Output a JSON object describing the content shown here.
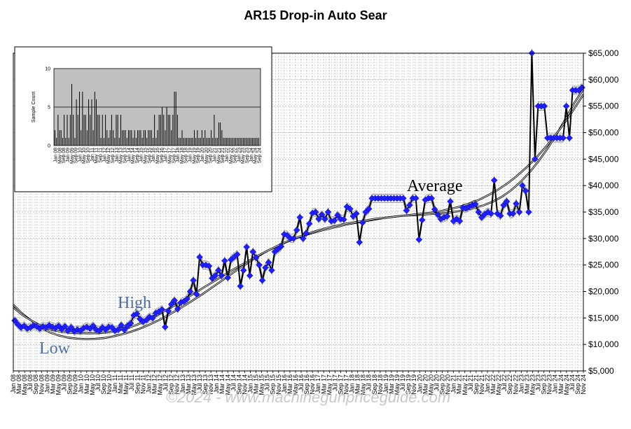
{
  "title": "AR15 Drop-in Auto Sear",
  "watermark": "©2024 - www.machinegunpriceguide.com",
  "colors": {
    "price_line": "#000000",
    "marker": "#1f1fff",
    "trend": "#000000",
    "band": "#c8c8d0",
    "grid": "#b8b8b8",
    "inset_bg": "#c0c0c0"
  },
  "chart_data": {
    "type": "line",
    "title": "AR15 Drop-in Auto Sear",
    "ylim": [
      5000,
      65000
    ],
    "yticks": [
      "$5,000",
      "$10,000",
      "$15,000",
      "$20,000",
      "$25,000",
      "$30,000",
      "$35,000",
      "$40,000",
      "$45,000",
      "$50,000",
      "$55,000",
      "$60,000",
      "$65,000"
    ],
    "xticks": [
      "Jan 08",
      "Mar 08",
      "May 08",
      "Jul 08",
      "Sep 08",
      "Nov 08",
      "Jan 09",
      "Mar 09",
      "May 09",
      "Jul 09",
      "Sep 09",
      "Nov 09",
      "Jan 10",
      "Mar 10",
      "May 10",
      "Jul 10",
      "Sep 10",
      "Nov 10",
      "Jan 11",
      "Mar 11",
      "May 11",
      "Jul 11",
      "Sep 11",
      "Nov 11",
      "Jan 12",
      "Mar 12",
      "May 12",
      "Jul 12",
      "Sep 12",
      "Nov 12",
      "Jan 13",
      "Mar 13",
      "May 13",
      "Jul 13",
      "Sep 13",
      "Nov 13",
      "Jan 14",
      "Mar 14",
      "May 14",
      "Jul 14",
      "Sep 14",
      "Nov 14",
      "Jan 15",
      "Mar 15",
      "May 15",
      "Jul 15",
      "Sep 15",
      "Nov 15",
      "Jan 16",
      "Mar 16",
      "May 16",
      "Jul 16",
      "Sep 16",
      "Nov 16",
      "Jan 17",
      "Mar 17",
      "May 17",
      "Jul 17",
      "Sep 17",
      "Nov 17",
      "Jan 18",
      "Mar 18",
      "May 18",
      "Jul 18",
      "Sep 18",
      "Nov 18",
      "Jan 19",
      "Mar 19",
      "May 19",
      "Jul 19",
      "Sep 19",
      "Nov 19",
      "Jan 20",
      "Mar 20",
      "May 20",
      "Jul 20",
      "Sep 20",
      "Nov 20",
      "Jan 21",
      "Mar 21",
      "May 21",
      "Jul 21",
      "Sep 21",
      "Nov 21",
      "Jan 22",
      "Mar 22",
      "May 22",
      "Jul 22",
      "Sep 22",
      "Nov 22",
      "Jan 23",
      "Mar 23",
      "May 23",
      "Jul 23",
      "Sep 23",
      "Nov 23",
      "Jan 24",
      "Mar 24",
      "May 24",
      "Jul 24",
      "Sep 24",
      "Nov 24"
    ],
    "series": [
      {
        "values": [
          14500,
          13800,
          13200,
          13500,
          13000,
          13200,
          13600,
          13400,
          13000,
          13400,
          13200,
          13600,
          13300,
          13100,
          13500,
          12900,
          13400,
          12600,
          13200,
          12500,
          12800,
          12600,
          13100,
          13300,
          13000,
          13500,
          12800,
          12600,
          13200,
          12800,
          13300,
          13200,
          12600,
          12800,
          13600,
          12800,
          13500,
          14000,
          15500,
          15800,
          14800,
          14300,
          14600,
          15200,
          15000,
          15900,
          16200,
          16600,
          13300,
          16300,
          17600,
          18300,
          16700,
          17900,
          18100,
          18600,
          20000,
          22100,
          19500,
          26500,
          25000,
          25000,
          24800,
          22500,
          23000,
          24000,
          23000,
          25800,
          22600,
          26000,
          26500,
          27000,
          21000,
          24000,
          28400,
          23000,
          27500,
          26400,
          25000,
          22100,
          24500,
          25500,
          24000,
          27500,
          28000,
          28500,
          30800,
          30600,
          30000,
          30000,
          31600,
          34000,
          30000,
          31000,
          32800,
          34800,
          35000,
          33700,
          34500,
          33700,
          35000,
          33300,
          33400,
          34400,
          33700,
          33600,
          36000,
          35600,
          34200,
          34700,
          29300,
          33000,
          35000,
          35600,
          37600,
          37600,
          37600,
          37600,
          37600,
          37600,
          37600,
          37600,
          37600,
          37600,
          37600,
          35300,
          36300,
          37600,
          37600,
          29800,
          33500,
          37300,
          37600,
          37600,
          35500,
          34500,
          33700,
          34000,
          34200,
          37000,
          33300,
          33700,
          33300,
          35800,
          35700,
          36000,
          36300,
          36500,
          35000,
          34000,
          34600,
          35000,
          34700,
          41000,
          34700,
          34300,
          36300,
          37000,
          34700,
          34700,
          36600,
          35000,
          40000,
          39000,
          35000,
          65000,
          45000,
          55000,
          55000,
          55000,
          49000,
          49000,
          49000,
          49000,
          49000,
          49000,
          55000,
          49000,
          58000,
          58000,
          58000,
          58500
        ]
      },
      {
        "values": [
          17500,
          15800,
          14500,
          13300,
          12300,
          11700,
          11300,
          11100,
          11000,
          11050,
          11200,
          11500,
          11900,
          12400,
          13000,
          13700,
          14500,
          15400,
          16400,
          17400,
          18500,
          19600,
          20800,
          22000,
          23200,
          24400,
          25500,
          26600,
          27600,
          28400,
          29200,
          29900,
          30500,
          31000,
          31500,
          31900,
          32300,
          32700,
          33000,
          33300,
          33600,
          33900,
          34100,
          34300,
          34400,
          34500,
          34600,
          34700,
          34900,
          35100,
          35400,
          35800,
          36300,
          37000,
          37900,
          39100,
          40600,
          42400,
          44500,
          46900,
          49600,
          52500,
          55600,
          58200
        ]
      },
      {
        "values": [
          17000,
          15500,
          14400,
          13400,
          12800,
          12400,
          12200,
          12150,
          12100,
          12150,
          12300,
          12600,
          13100,
          13700,
          14500,
          15400,
          16400,
          17400,
          18500,
          19600,
          20700,
          21800,
          22900,
          24000,
          25000,
          26000,
          27000,
          27900,
          28800,
          29600,
          30300,
          30900,
          31500,
          32000,
          32400,
          32800,
          33100,
          33400,
          33700,
          33900,
          34100,
          34300,
          34500,
          34700,
          34900,
          35200,
          35600,
          36000,
          36600,
          37300,
          38200,
          39200,
          40400,
          41800,
          43400,
          45200,
          47200,
          49400,
          51800,
          54400,
          57200
        ]
      }
    ],
    "inset_counts": [
      2,
      1,
      4,
      2,
      2,
      1,
      4,
      1,
      4,
      1,
      4,
      8,
      4,
      1,
      6,
      4,
      7,
      2,
      7,
      4,
      4,
      2,
      6,
      4,
      6,
      2,
      7,
      6,
      4,
      4,
      1,
      4,
      1,
      4,
      2,
      1,
      2,
      4,
      2,
      1,
      4,
      4,
      1,
      4,
      2,
      2,
      2,
      1,
      2,
      2,
      2,
      1,
      2,
      1,
      2,
      2,
      2,
      1,
      2,
      2,
      1,
      2,
      2,
      2,
      1,
      4,
      1,
      2,
      4,
      4,
      5,
      4,
      2,
      5,
      4,
      4,
      2,
      4,
      7,
      7,
      4,
      1,
      1,
      2,
      1,
      1,
      1,
      1,
      1,
      1,
      1,
      2,
      1,
      2,
      1,
      1,
      2,
      1,
      2,
      1,
      1,
      1,
      2,
      1,
      4,
      1,
      1,
      3,
      3,
      2,
      1,
      1,
      1,
      1,
      1,
      1,
      1,
      1,
      1,
      1,
      1,
      1,
      1,
      1,
      1,
      1,
      1,
      1,
      1,
      1,
      1,
      1,
      1,
      1
    ]
  },
  "inset": {
    "ylabel": "Sample Count",
    "yticks": [
      "0",
      "5",
      "10"
    ],
    "average_line": 5,
    "xticks": [
      "Jan 08",
      "May 08",
      "Sep 08",
      "Jan 09",
      "May 09",
      "Sep 09",
      "Jan 10",
      "May 10",
      "Sep 10",
      "Jan 11",
      "May 11",
      "Sep 11",
      "Jan 12",
      "May 12",
      "Sep 12",
      "Jan 13",
      "May 13",
      "Sep 13",
      "Jan 14",
      "May 14",
      "Sep 14",
      "Jan 15",
      "May 15",
      "Sep 15",
      "Jan 16",
      "May 16",
      "Sep 16",
      "Jan 17",
      "May 17",
      "Sep 17",
      "Jan 18",
      "May 18",
      "Sep 18",
      "Jan 19",
      "May 19",
      "Sep 19",
      "Jan 20",
      "May 20",
      "Sep 20",
      "Jan 21",
      "May 21",
      "Sep 21",
      "Jan 22",
      "May 22",
      "Sep 22",
      "Jan 23",
      "May 23",
      "Sep 23",
      "Jan 24",
      "May 24",
      "Sep 24"
    ]
  },
  "annotations": {
    "high": "High",
    "low": "Low",
    "average": "Average"
  }
}
